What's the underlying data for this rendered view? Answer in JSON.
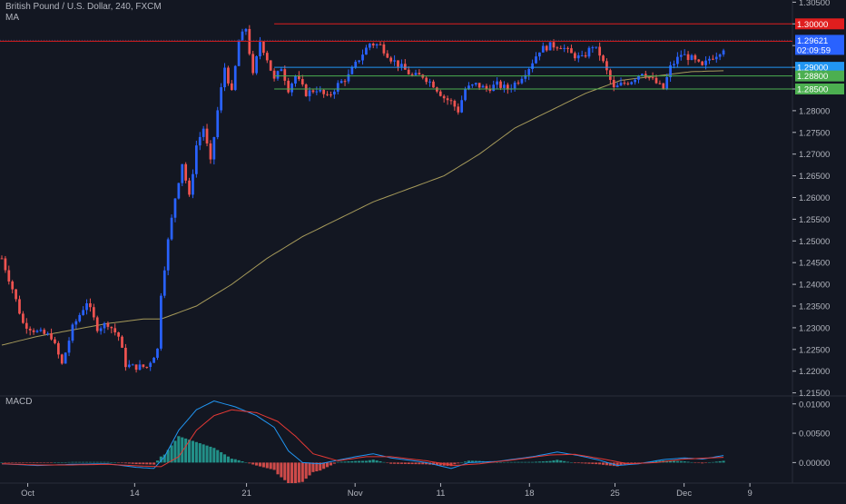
{
  "header": {
    "symbol_line": "British Pound / U.S. Dollar, 240, FXCM",
    "indicator_ma": "MA",
    "indicator_macd": "MACD"
  },
  "colors": {
    "background": "#131722",
    "candle_up": "#2962ff",
    "candle_down": "#ef5350",
    "ma_line": "#a69a5a",
    "resistance_line": "#e01e1e",
    "support_blue_line": "#2196f3",
    "support_green_line": "#4caf50",
    "macd_line": "#2196f3",
    "signal_line": "#e53935",
    "hist_pos": "#26a69a",
    "hist_neg": "#ef5350",
    "axis_text": "#b2b5be",
    "separator": "#2a2e39"
  },
  "chart_data": [
    {
      "type": "candlestick",
      "name": "price",
      "ylim": [
        1.2145,
        1.3055
      ],
      "y_ticks": [
        "1.30500",
        "1.30000",
        "1.29500",
        "1.29000",
        "1.28500",
        "1.28000",
        "1.27500",
        "1.27000",
        "1.26500",
        "1.26000",
        "1.25500",
        "1.25000",
        "1.24500",
        "1.24000",
        "1.23500",
        "1.23000",
        "1.22500",
        "1.22000",
        "1.21500"
      ],
      "x_ticks": [
        "Oct",
        "14",
        "21",
        "Nov",
        "11",
        "18",
        "25",
        "Dec",
        "9"
      ],
      "x_tick_positions": [
        2.5,
        35,
        69,
        102,
        128,
        155,
        181,
        202,
        222
      ],
      "bars_count": 204,
      "price_path": [
        [
          0,
          1.246
        ],
        [
          3,
          1.239
        ],
        [
          6,
          1.231
        ],
        [
          10,
          1.229
        ],
        [
          14,
          1.228
        ],
        [
          17,
          1.2215
        ],
        [
          20,
          1.23
        ],
        [
          24,
          1.236
        ],
        [
          27,
          1.23
        ],
        [
          30,
          1.231
        ],
        [
          33,
          1.228
        ],
        [
          35,
          1.2215
        ],
        [
          37,
          1.221
        ],
        [
          41,
          1.221
        ],
        [
          44,
          1.225
        ],
        [
          45,
          1.238
        ],
        [
          47,
          1.25
        ],
        [
          49,
          1.26
        ],
        [
          51,
          1.268
        ],
        [
          53,
          1.26
        ],
        [
          55,
          1.272
        ],
        [
          57,
          1.276
        ],
        [
          59,
          1.268
        ],
        [
          61,
          1.28
        ],
        [
          63,
          1.29
        ],
        [
          65,
          1.284
        ],
        [
          67,
          1.296
        ],
        [
          69,
          1.299
        ],
        [
          71,
          1.288
        ],
        [
          73,
          1.296
        ],
        [
          75,
          1.292
        ],
        [
          77,
          1.287
        ],
        [
          79,
          1.29
        ],
        [
          81,
          1.285
        ],
        [
          83,
          1.288
        ],
        [
          86,
          1.284
        ],
        [
          89,
          1.285
        ],
        [
          92,
          1.283
        ],
        [
          95,
          1.286
        ],
        [
          98,
          1.288
        ],
        [
          101,
          1.292
        ],
        [
          104,
          1.2955
        ],
        [
          107,
          1.295
        ],
        [
          110,
          1.292
        ],
        [
          113,
          1.29
        ],
        [
          116,
          1.288
        ],
        [
          119,
          1.288
        ],
        [
          122,
          1.286
        ],
        [
          125,
          1.283
        ],
        [
          127,
          1.282
        ],
        [
          129,
          1.28
        ],
        [
          131,
          1.285
        ],
        [
          134,
          1.286
        ],
        [
          137,
          1.285
        ],
        [
          140,
          1.286
        ],
        [
          143,
          1.285
        ],
        [
          146,
          1.287
        ],
        [
          149,
          1.29
        ],
        [
          152,
          1.294
        ],
        [
          155,
          1.295
        ],
        [
          158,
          1.295
        ],
        [
          161,
          1.293
        ],
        [
          164,
          1.292
        ],
        [
          167,
          1.295
        ],
        [
          169,
          1.293
        ],
        [
          171,
          1.289
        ],
        [
          173,
          1.285
        ],
        [
          175,
          1.286
        ],
        [
          178,
          1.287
        ],
        [
          181,
          1.289
        ],
        [
          184,
          1.287
        ],
        [
          187,
          1.285
        ],
        [
          189,
          1.29
        ],
        [
          192,
          1.293
        ],
        [
          195,
          1.292
        ],
        [
          198,
          1.29
        ],
        [
          200,
          1.292
        ],
        [
          202,
          1.293
        ],
        [
          204,
          1.2945
        ]
      ],
      "ma_path": [
        [
          0,
          1.226
        ],
        [
          10,
          1.228
        ],
        [
          20,
          1.2295
        ],
        [
          30,
          1.231
        ],
        [
          40,
          1.232
        ],
        [
          45,
          1.232
        ],
        [
          55,
          1.235
        ],
        [
          65,
          1.24
        ],
        [
          75,
          1.246
        ],
        [
          85,
          1.251
        ],
        [
          95,
          1.255
        ],
        [
          105,
          1.259
        ],
        [
          115,
          1.262
        ],
        [
          125,
          1.265
        ],
        [
          135,
          1.27
        ],
        [
          145,
          1.276
        ],
        [
          155,
          1.28
        ],
        [
          165,
          1.284
        ],
        [
          175,
          1.287
        ],
        [
          185,
          1.288
        ],
        [
          195,
          1.289
        ],
        [
          204,
          1.2892
        ]
      ]
    },
    {
      "type": "line_histogram",
      "name": "macd",
      "ylim": [
        -0.0035,
        0.0112
      ],
      "y_ticks": [
        "0.01000",
        "0.00500",
        "0.00000"
      ],
      "macd_path": [
        [
          0,
          -0.0002
        ],
        [
          10,
          -0.0005
        ],
        [
          20,
          -0.0003
        ],
        [
          30,
          -0.0002
        ],
        [
          38,
          -0.0008
        ],
        [
          43,
          -0.001
        ],
        [
          46,
          0.001
        ],
        [
          50,
          0.0055
        ],
        [
          55,
          0.009
        ],
        [
          60,
          0.0105
        ],
        [
          66,
          0.0095
        ],
        [
          72,
          0.008
        ],
        [
          77,
          0.006
        ],
        [
          81,
          0.002
        ],
        [
          85,
          0.0
        ],
        [
          90,
          -0.0002
        ],
        [
          100,
          0.001
        ],
        [
          105,
          0.0015
        ],
        [
          110,
          0.0008
        ],
        [
          120,
          0.0
        ],
        [
          127,
          -0.001
        ],
        [
          132,
          0.0
        ],
        [
          140,
          0.0002
        ],
        [
          150,
          0.001
        ],
        [
          157,
          0.0018
        ],
        [
          163,
          0.0012
        ],
        [
          169,
          0.0004
        ],
        [
          174,
          -0.0005
        ],
        [
          180,
          -0.0002
        ],
        [
          187,
          0.0005
        ],
        [
          193,
          0.0008
        ],
        [
          198,
          0.0006
        ],
        [
          204,
          0.0012
        ]
      ],
      "signal_path": [
        [
          0,
          -0.0002
        ],
        [
          10,
          -0.0004
        ],
        [
          20,
          -0.0004
        ],
        [
          30,
          -0.0003
        ],
        [
          40,
          -0.0006
        ],
        [
          45,
          -0.0007
        ],
        [
          50,
          0.001
        ],
        [
          55,
          0.0055
        ],
        [
          60,
          0.008
        ],
        [
          65,
          0.009
        ],
        [
          72,
          0.0085
        ],
        [
          78,
          0.007
        ],
        [
          83,
          0.0045
        ],
        [
          88,
          0.0015
        ],
        [
          95,
          0.0003
        ],
        [
          103,
          0.001
        ],
        [
          110,
          0.001
        ],
        [
          120,
          0.0003
        ],
        [
          128,
          -0.0005
        ],
        [
          135,
          -0.0002
        ],
        [
          145,
          0.0005
        ],
        [
          155,
          0.0013
        ],
        [
          162,
          0.0014
        ],
        [
          170,
          0.0006
        ],
        [
          177,
          -0.0002
        ],
        [
          185,
          0.0
        ],
        [
          193,
          0.0006
        ],
        [
          204,
          0.0009
        ]
      ]
    }
  ],
  "horizontal_levels": [
    {
      "price": 1.3,
      "label": "1.30000",
      "color": "#e01e1e",
      "start_bar": 77
    },
    {
      "price": 1.296,
      "label": "1.29600",
      "color": "#e01e1e",
      "start_bar": 0
    },
    {
      "price": 1.29,
      "label": "1.29000",
      "color": "#2196f3",
      "start_bar": 77
    },
    {
      "price": 1.288,
      "label": "1.28800",
      "color": "#4caf50",
      "start_bar": 77
    },
    {
      "price": 1.285,
      "label": "1.28500",
      "color": "#4caf50",
      "start_bar": 77
    }
  ],
  "current_price": {
    "value": 1.29621,
    "label": "1.29621",
    "countdown": "02:09:59",
    "color": "#2962ff"
  }
}
